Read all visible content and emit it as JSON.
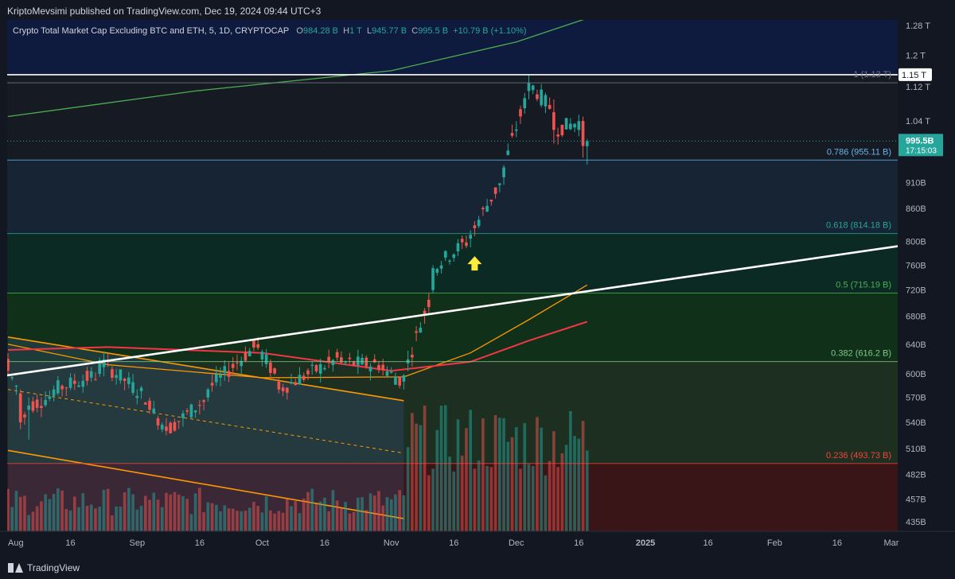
{
  "header": {
    "publisher": "KriptoMevsimi published on TradingView.com, Dec 19, 2024 09:44 UTC+3"
  },
  "legend": {
    "symbol": "Crypto Total Market Cap Excluding BTC and ETH, 5, 1D, CRYPTOCAP",
    "o_label": "O",
    "o_value": "984.28 B",
    "h_label": "H",
    "h_value": "1 T",
    "l_label": "L",
    "l_value": "945.77 B",
    "c_label": "C",
    "c_value": "995.5 B",
    "change": "+10.79 B (+1.10%)"
  },
  "footer": {
    "brand": "TradingView"
  },
  "colors": {
    "background": "#131722",
    "up": "#26a69a",
    "down": "#ef5350",
    "fib_1": "#787b86",
    "fib_0786": "#64b5f6",
    "fib_0618": "#26a69a",
    "fib_05": "#4caf50",
    "fib_0382": "#81c784",
    "fib_0236": "#f44336",
    "ma_green": "#4caf50",
    "ma_orange": "#ff9800",
    "ma_red": "#f23645",
    "arrow": "#ffeb3b",
    "trendline": "#ffffff"
  },
  "chart_data": {
    "type": "candlestick",
    "y_scale": "log",
    "y_range": [
      420,
      1310
    ],
    "x_range": [
      "2024-08-01",
      "2025-03-01"
    ],
    "y_ticks": [
      "1.28 T",
      "1.2 T",
      "1.12 T",
      "1.04 T",
      "990B",
      "910B",
      "860B",
      "800B",
      "760B",
      "720B",
      "680B",
      "640B",
      "600B",
      "570B",
      "540B",
      "510B",
      "482B",
      "457B",
      "435B"
    ],
    "y_tick_values": [
      1280,
      1200,
      1120,
      1040,
      990,
      910,
      860,
      800,
      760,
      720,
      680,
      640,
      600,
      570,
      540,
      510,
      482,
      457,
      435
    ],
    "x_ticks": [
      "Aug",
      "16",
      "Sep",
      "16",
      "Oct",
      "16",
      "Nov",
      "16",
      "Dec",
      "16",
      "2025",
      "16",
      "Feb",
      "16",
      "Mar"
    ],
    "x_tick_dates": [
      "2024-08-01",
      "2024-08-16",
      "2024-09-01",
      "2024-09-16",
      "2024-10-01",
      "2024-10-16",
      "2024-11-01",
      "2024-11-16",
      "2024-12-01",
      "2024-12-16",
      "2025-01-01",
      "2025-01-16",
      "2025-02-01",
      "2025-02-16",
      "2025-03-01"
    ],
    "last_price": {
      "label": "995.5B",
      "countdown": "17:15:03",
      "value": 995.5
    },
    "horizontal_line": {
      "label": "1.15 T",
      "value": 1150
    },
    "fib_levels": [
      {
        "ratio": "1",
        "text": "1 (1.13 T)",
        "value": 1130,
        "color": "#787b86"
      },
      {
        "ratio": "0.786",
        "text": "0.786 (955.11 B)",
        "value": 955.11,
        "color": "#64b5f6"
      },
      {
        "ratio": "0.618",
        "text": "0.618 (814.18 B)",
        "value": 814.18,
        "color": "#26a69a"
      },
      {
        "ratio": "0.5",
        "text": "0.5 (715.19 B)",
        "value": 715.19,
        "color": "#4caf50"
      },
      {
        "ratio": "0.382",
        "text": "0.382 (616.2 B)",
        "value": 616.2,
        "color": "#81c784"
      },
      {
        "ratio": "0.236",
        "text": "0.236 (493.73 B)",
        "value": 493.73,
        "color": "#f44336"
      }
    ],
    "candles_anchor_ohlc": [
      [
        "2024-08-01",
        620,
        628,
        598,
        604
      ],
      [
        "2024-08-04",
        575,
        580,
        532,
        540
      ],
      [
        "2024-08-06",
        555,
        570,
        520,
        560
      ],
      [
        "2024-08-12",
        572,
        585,
        565,
        580
      ],
      [
        "2024-08-23",
        600,
        622,
        596,
        618
      ],
      [
        "2024-09-04",
        566,
        570,
        550,
        555
      ],
      [
        "2024-09-08",
        535,
        545,
        525,
        530
      ],
      [
        "2024-09-18",
        570,
        582,
        565,
        580
      ],
      [
        "2024-09-30",
        640,
        650,
        632,
        635
      ],
      [
        "2024-10-05",
        590,
        596,
        575,
        580
      ],
      [
        "2024-10-20",
        622,
        630,
        612,
        615
      ],
      [
        "2024-10-30",
        612,
        620,
        598,
        606
      ],
      [
        "2024-11-04",
        590,
        600,
        580,
        598
      ],
      [
        "2024-11-11",
        720,
        760,
        715,
        755
      ],
      [
        "2024-11-20",
        805,
        820,
        790,
        812
      ],
      [
        "2024-11-28",
        920,
        945,
        905,
        940
      ],
      [
        "2024-12-04",
        1110,
        1150,
        1090,
        1130
      ],
      [
        "2024-12-10",
        1060,
        1090,
        990,
        1020
      ],
      [
        "2024-12-17",
        1040,
        1050,
        960,
        985
      ],
      [
        "2024-12-18",
        984.28,
        1000,
        945.77,
        995.5
      ]
    ],
    "annotations": [
      "up-arrow at 2024-11-21 below price"
    ]
  }
}
